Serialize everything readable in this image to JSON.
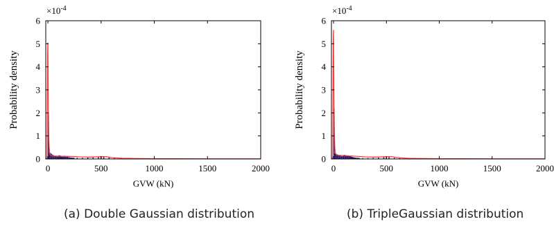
{
  "chart_data": [
    {
      "type": "bar",
      "overlay": "line",
      "xlabel": "GVW (kN)",
      "ylabel": "Probability density",
      "y_multiplier": "×10",
      "y_multiplier_exp": "-4",
      "xlim": [
        -20,
        2000
      ],
      "ylim": [
        0,
        6
      ],
      "xticks": [
        0,
        500,
        1000,
        1500,
        2000
      ],
      "yticks": [
        0,
        1,
        2,
        3,
        4,
        5,
        6
      ],
      "grid": false,
      "colors": {
        "bars": "#1f1a6e",
        "fit_line": "#ff3b3b"
      },
      "bars": {
        "x": [
          -10,
          5,
          15,
          25,
          35,
          45,
          55,
          65,
          75,
          85,
          95,
          105,
          115,
          125,
          135,
          145,
          155,
          165,
          175,
          185,
          195,
          205,
          215,
          225,
          235,
          245,
          275,
          325,
          375,
          425,
          475,
          500,
          525,
          575,
          625,
          700,
          850,
          1000,
          1250,
          1500,
          1750,
          1950
        ],
        "y": [
          0.05,
          2.0,
          0.28,
          0.25,
          0.22,
          0.18,
          0.16,
          0.14,
          0.12,
          0.12,
          0.13,
          0.16,
          0.15,
          0.13,
          0.11,
          0.12,
          0.14,
          0.12,
          0.1,
          0.09,
          0.08,
          0.07,
          0.06,
          0.06,
          0.05,
          0.05,
          0.05,
          0.05,
          0.06,
          0.07,
          0.09,
          0.1,
          0.09,
          0.06,
          0.04,
          0.02,
          0.01,
          0.01,
          0.005,
          0.005,
          0.005,
          0.005
        ],
        "width": 10
      },
      "fit_line": {
        "x": [
          -8,
          -5,
          -3,
          -1,
          0,
          1,
          3,
          5,
          8,
          12,
          16,
          20,
          30,
          50,
          100,
          150,
          200,
          300,
          400,
          500,
          550,
          600,
          700,
          800,
          1000,
          1200,
          1500,
          1800,
          2000
        ],
        "y": [
          0.0,
          2.5,
          4.4,
          5.05,
          5.0,
          4.3,
          3.2,
          2.0,
          1.0,
          0.5,
          0.3,
          0.2,
          0.15,
          0.13,
          0.12,
          0.11,
          0.11,
          0.09,
          0.08,
          0.1,
          0.1,
          0.06,
          0.03,
          0.02,
          0.01,
          0.01,
          0.005,
          0.005,
          0.005
        ]
      }
    },
    {
      "type": "bar",
      "overlay": "line",
      "xlabel": "GVW (kN)",
      "ylabel": "Probability density",
      "y_multiplier": "×10",
      "y_multiplier_exp": "-4",
      "xlim": [
        -20,
        2000
      ],
      "ylim": [
        0,
        6
      ],
      "xticks": [
        0,
        500,
        1000,
        1500,
        2000
      ],
      "yticks": [
        0,
        1,
        2,
        3,
        4,
        5,
        6
      ],
      "grid": false,
      "colors": {
        "bars": "#1f1a6e",
        "fit_line": "#ff3b3b"
      },
      "bars": {
        "x": [
          -10,
          5,
          15,
          25,
          35,
          45,
          55,
          65,
          75,
          85,
          95,
          105,
          115,
          125,
          135,
          145,
          155,
          165,
          175,
          185,
          195,
          205,
          215,
          225,
          235,
          245,
          275,
          325,
          375,
          425,
          475,
          500,
          525,
          575,
          625,
          700,
          850,
          1000,
          1250,
          1500,
          1750,
          1950
        ],
        "y": [
          0.05,
          2.2,
          0.25,
          0.22,
          0.2,
          0.18,
          0.16,
          0.14,
          0.12,
          0.12,
          0.15,
          0.18,
          0.16,
          0.14,
          0.12,
          0.12,
          0.13,
          0.11,
          0.09,
          0.08,
          0.07,
          0.06,
          0.05,
          0.05,
          0.05,
          0.04,
          0.04,
          0.04,
          0.05,
          0.06,
          0.08,
          0.09,
          0.08,
          0.05,
          0.03,
          0.02,
          0.01,
          0.01,
          0.005,
          0.005,
          0.005,
          0.005
        ],
        "width": 10
      },
      "fit_line": {
        "x": [
          -8,
          -5,
          -3,
          -1,
          0,
          1,
          3,
          5,
          8,
          12,
          16,
          20,
          30,
          50,
          100,
          150,
          200,
          300,
          400,
          500,
          550,
          600,
          700,
          800,
          1000,
          1200,
          1500,
          1800,
          2000
        ],
        "y": [
          0.0,
          3.0,
          5.0,
          5.6,
          5.5,
          4.6,
          3.4,
          2.1,
          1.1,
          0.5,
          0.3,
          0.22,
          0.18,
          0.16,
          0.15,
          0.13,
          0.12,
          0.09,
          0.08,
          0.1,
          0.1,
          0.06,
          0.03,
          0.02,
          0.01,
          0.01,
          0.005,
          0.005,
          0.005
        ]
      }
    }
  ],
  "captions": {
    "a": "(a) Double Gaussian distribution",
    "b": "(b) TripleGaussian distribution"
  }
}
